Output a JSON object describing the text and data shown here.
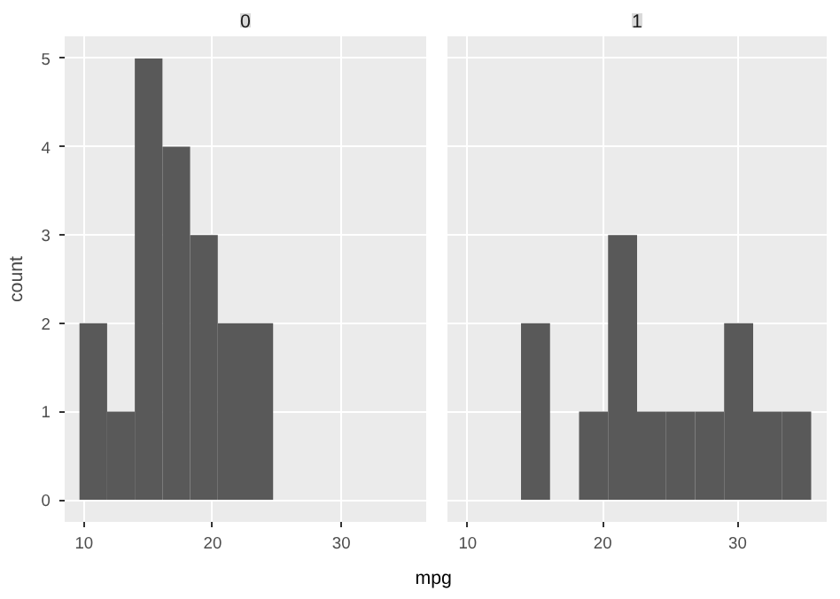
{
  "chart_data": [
    {
      "type": "histogram",
      "title": "0",
      "xlabel": "mpg",
      "ylabel": "count",
      "color": "#595959",
      "bins": [
        9.65,
        11.8,
        13.95,
        16.1,
        18.25,
        20.4,
        22.55,
        24.7,
        26.85,
        29.0,
        31.15,
        33.3,
        35.45
      ],
      "values": [
        2,
        1,
        5,
        4,
        3,
        2,
        2,
        0,
        0,
        0,
        0,
        0
      ],
      "xlim": [
        8.5,
        36.6
      ],
      "ylim": [
        -0.25,
        5.25
      ],
      "xticks": [
        10,
        20,
        30
      ],
      "yticks": [
        0,
        1,
        2,
        3,
        4,
        5
      ],
      "grid": true
    },
    {
      "type": "histogram",
      "title": "1",
      "color": "#595959",
      "bins": [
        9.65,
        11.8,
        13.95,
        16.1,
        18.25,
        20.4,
        22.55,
        24.7,
        26.85,
        29.0,
        31.15,
        33.3,
        35.45
      ],
      "values": [
        0,
        0,
        2,
        0,
        1,
        3,
        1,
        1,
        1,
        2,
        1,
        1
      ],
      "xlim": [
        8.5,
        36.6
      ],
      "ylim": [
        -0.25,
        5.25
      ],
      "xticks": [
        10,
        20,
        30
      ],
      "yticks": [
        0,
        1,
        2,
        3,
        4,
        5
      ],
      "grid": true,
      "tick_labels": "x"
    }
  ]
}
